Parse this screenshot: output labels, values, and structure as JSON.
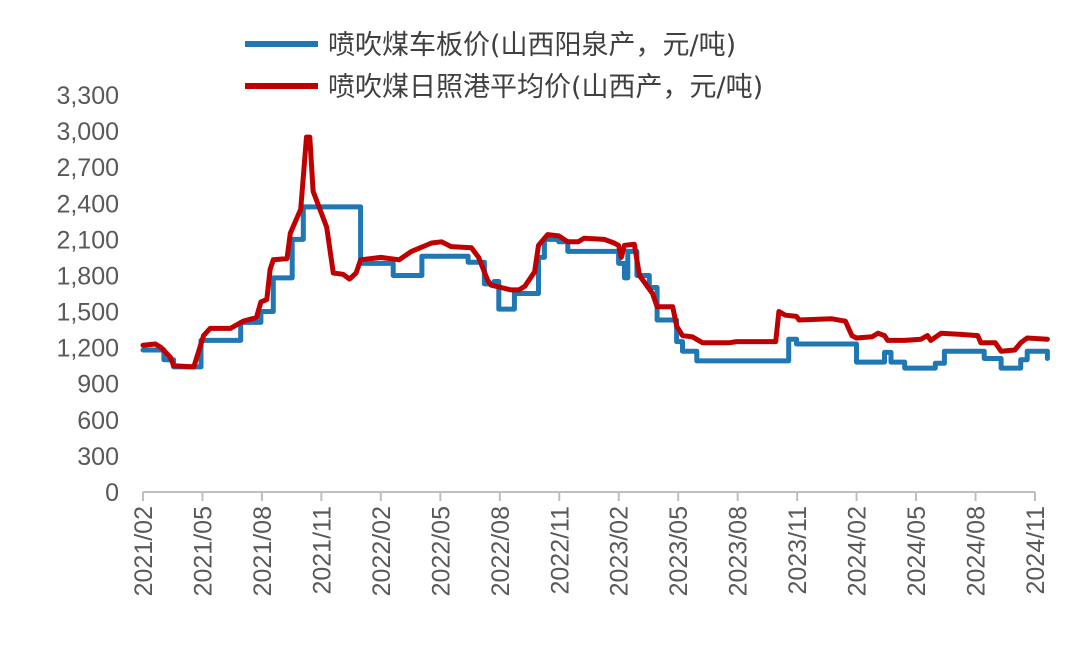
{
  "chart_data": {
    "type": "line",
    "title": "",
    "xlabel": "",
    "ylabel": "",
    "ylim": [
      0,
      3300
    ],
    "y_ticks": [
      "0",
      "300",
      "600",
      "900",
      "1,200",
      "1,500",
      "1,800",
      "2,100",
      "2,400",
      "2,700",
      "3,000",
      "3,300"
    ],
    "x_ticks": [
      "2021/02",
      "2021/05",
      "2021/08",
      "2021/11",
      "2022/02",
      "2022/05",
      "2022/08",
      "2022/11",
      "2023/02",
      "2023/05",
      "2023/08",
      "2023/11",
      "2024/02",
      "2024/05",
      "2024/08",
      "2024/11"
    ],
    "grid": false,
    "legend_position": "top",
    "series": [
      {
        "name": "喷吹煤车板价(山西阳泉产，元/吨)",
        "color": "#1F77B4",
        "step": true,
        "points": [
          [
            "2021-02-01",
            1180
          ],
          [
            "2021-03-05",
            1100
          ],
          [
            "2021-03-20",
            1040
          ],
          [
            "2021-04-20",
            1040
          ],
          [
            "2021-05-01",
            1260
          ],
          [
            "2021-06-20",
            1260
          ],
          [
            "2021-07-01",
            1410
          ],
          [
            "2021-07-25",
            1410
          ],
          [
            "2021-08-01",
            1500
          ],
          [
            "2021-08-15",
            1500
          ],
          [
            "2021-08-20",
            1780
          ],
          [
            "2021-09-15",
            1780
          ],
          [
            "2021-09-18",
            2100
          ],
          [
            "2021-10-05",
            2370
          ],
          [
            "2021-12-25",
            2370
          ],
          [
            "2022-01-01",
            1900
          ],
          [
            "2022-02-15",
            1900
          ],
          [
            "2022-02-20",
            1800
          ],
          [
            "2022-04-01",
            1800
          ],
          [
            "2022-04-05",
            1960
          ],
          [
            "2022-06-10",
            1960
          ],
          [
            "2022-06-15",
            1910
          ],
          [
            "2022-07-01",
            1910
          ],
          [
            "2022-07-10",
            1730
          ],
          [
            "2022-07-25",
            1750
          ],
          [
            "2022-08-01",
            1520
          ],
          [
            "2022-08-20",
            1520
          ],
          [
            "2022-08-25",
            1650
          ],
          [
            "2022-09-25",
            1650
          ],
          [
            "2022-10-01",
            1950
          ],
          [
            "2022-10-10",
            2100
          ],
          [
            "2022-11-01",
            2080
          ],
          [
            "2022-11-15",
            2000
          ],
          [
            "2023-01-25",
            2000
          ],
          [
            "2023-02-01",
            1900
          ],
          [
            "2023-02-10",
            1780
          ],
          [
            "2023-02-15",
            2000
          ],
          [
            "2023-03-01",
            1800
          ],
          [
            "2023-03-20",
            1700
          ],
          [
            "2023-04-01",
            1430
          ],
          [
            "2023-05-01",
            1250
          ],
          [
            "2023-05-10",
            1170
          ],
          [
            "2023-06-01",
            1090
          ],
          [
            "2023-10-15",
            1090
          ],
          [
            "2023-10-20",
            1270
          ],
          [
            "2023-11-01",
            1230
          ],
          [
            "2024-01-15",
            1230
          ],
          [
            "2024-02-01",
            1080
          ],
          [
            "2024-03-10",
            1080
          ],
          [
            "2024-03-15",
            1160
          ],
          [
            "2024-03-25",
            1080
          ],
          [
            "2024-04-15",
            1030
          ],
          [
            "2024-05-20",
            1030
          ],
          [
            "2024-06-01",
            1070
          ],
          [
            "2024-06-15",
            1170
          ],
          [
            "2024-08-10",
            1170
          ],
          [
            "2024-08-15",
            1110
          ],
          [
            "2024-09-01",
            1110
          ],
          [
            "2024-09-10",
            1030
          ],
          [
            "2024-10-05",
            1030
          ],
          [
            "2024-10-10",
            1100
          ],
          [
            "2024-10-20",
            1170
          ],
          [
            "2024-11-15",
            1170
          ],
          [
            "2024-11-20",
            1110
          ]
        ]
      },
      {
        "name": "喷吹煤日照港平均价(山西产，元/吨)",
        "color": "#C00000",
        "step": false,
        "points": [
          [
            "2021-02-01",
            1220
          ],
          [
            "2021-02-20",
            1230
          ],
          [
            "2021-03-01",
            1200
          ],
          [
            "2021-03-15",
            1120
          ],
          [
            "2021-03-20",
            1050
          ],
          [
            "2021-04-20",
            1040
          ],
          [
            "2021-05-05",
            1300
          ],
          [
            "2021-05-15",
            1360
          ],
          [
            "2021-06-15",
            1360
          ],
          [
            "2021-07-05",
            1420
          ],
          [
            "2021-07-25",
            1450
          ],
          [
            "2021-08-01",
            1580
          ],
          [
            "2021-08-10",
            1600
          ],
          [
            "2021-08-15",
            1850
          ],
          [
            "2021-08-20",
            1930
          ],
          [
            "2021-09-10",
            1940
          ],
          [
            "2021-09-15",
            2150
          ],
          [
            "2021-10-01",
            2350
          ],
          [
            "2021-10-10",
            2950
          ],
          [
            "2021-10-15",
            2950
          ],
          [
            "2021-10-20",
            2500
          ],
          [
            "2021-11-10",
            2200
          ],
          [
            "2021-11-20",
            1820
          ],
          [
            "2021-12-05",
            1810
          ],
          [
            "2021-12-15",
            1770
          ],
          [
            "2021-12-25",
            1820
          ],
          [
            "2022-01-01",
            1930
          ],
          [
            "2022-02-01",
            1950
          ],
          [
            "2022-03-01",
            1930
          ],
          [
            "2022-03-20",
            2000
          ],
          [
            "2022-04-20",
            2070
          ],
          [
            "2022-05-05",
            2080
          ],
          [
            "2022-05-20",
            2040
          ],
          [
            "2022-06-20",
            2030
          ],
          [
            "2022-07-01",
            1950
          ],
          [
            "2022-07-15",
            1760
          ],
          [
            "2022-07-20",
            1720
          ],
          [
            "2022-08-20",
            1680
          ],
          [
            "2022-09-01",
            1680
          ],
          [
            "2022-09-10",
            1710
          ],
          [
            "2022-09-25",
            1830
          ],
          [
            "2022-10-01",
            2050
          ],
          [
            "2022-10-15",
            2140
          ],
          [
            "2022-11-01",
            2130
          ],
          [
            "2022-11-15",
            2080
          ],
          [
            "2022-12-01",
            2080
          ],
          [
            "2022-12-10",
            2110
          ],
          [
            "2023-01-10",
            2100
          ],
          [
            "2023-01-25",
            2070
          ],
          [
            "2023-02-01",
            2050
          ],
          [
            "2023-02-05",
            1950
          ],
          [
            "2023-02-10",
            2050
          ],
          [
            "2023-02-25",
            2060
          ],
          [
            "2023-03-05",
            1800
          ],
          [
            "2023-03-25",
            1650
          ],
          [
            "2023-04-01",
            1540
          ],
          [
            "2023-04-25",
            1540
          ],
          [
            "2023-05-01",
            1380
          ],
          [
            "2023-05-10",
            1300
          ],
          [
            "2023-05-25",
            1290
          ],
          [
            "2023-06-10",
            1240
          ],
          [
            "2023-07-20",
            1240
          ],
          [
            "2023-08-01",
            1250
          ],
          [
            "2023-09-10",
            1250
          ],
          [
            "2023-09-30",
            1250
          ],
          [
            "2023-10-05",
            1500
          ],
          [
            "2023-10-15",
            1470
          ],
          [
            "2023-11-01",
            1460
          ],
          [
            "2023-11-05",
            1430
          ],
          [
            "2023-12-25",
            1440
          ],
          [
            "2024-01-15",
            1420
          ],
          [
            "2024-01-25",
            1300
          ],
          [
            "2024-02-01",
            1280
          ],
          [
            "2024-02-25",
            1290
          ],
          [
            "2024-03-05",
            1320
          ],
          [
            "2024-03-15",
            1300
          ],
          [
            "2024-03-20",
            1260
          ],
          [
            "2024-04-15",
            1260
          ],
          [
            "2024-05-10",
            1270
          ],
          [
            "2024-05-20",
            1300
          ],
          [
            "2024-05-25",
            1260
          ],
          [
            "2024-06-10",
            1320
          ],
          [
            "2024-07-10",
            1310
          ],
          [
            "2024-08-05",
            1300
          ],
          [
            "2024-08-10",
            1240
          ],
          [
            "2024-09-01",
            1240
          ],
          [
            "2024-09-10",
            1170
          ],
          [
            "2024-10-01",
            1180
          ],
          [
            "2024-10-10",
            1240
          ],
          [
            "2024-10-20",
            1280
          ],
          [
            "2024-11-20",
            1270
          ]
        ]
      }
    ]
  }
}
